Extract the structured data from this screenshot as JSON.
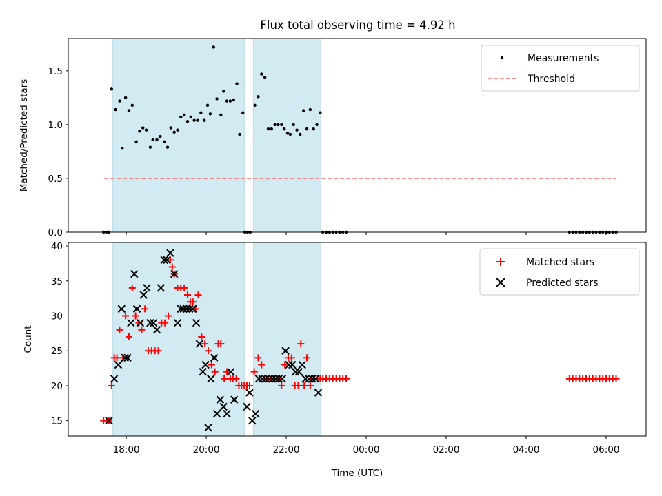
{
  "title": "Flux total observing time = 4.92 h",
  "xlabel": "Time (UTC)",
  "colors": {
    "shade": "#add8e6",
    "measurement": "#000000",
    "threshold": "#ff6b6b",
    "matched": "#ff0000",
    "predicted": "#000000"
  },
  "chart_data": [
    {
      "type": "scatter",
      "ylabel": "Matched/Predicted stars",
      "ylim": [
        0,
        1.8
      ],
      "yticks": [
        "0.0",
        "0.5",
        "1.0",
        "1.5"
      ],
      "ytick_values": [
        0.0,
        0.5,
        1.0,
        1.5
      ],
      "xticks": [],
      "legend": {
        "placement": "top-right",
        "entries": [
          "Measurements",
          "Threshold"
        ]
      },
      "grid": false,
      "shaded_spans": [
        [
          "17:40",
          "20:57"
        ],
        [
          "21:11",
          "22:52"
        ]
      ],
      "threshold": {
        "name": "Threshold",
        "y": 0.5,
        "x_range": [
          "17:27",
          "06:15"
        ]
      },
      "series": [
        {
          "name": "Measurements",
          "points": [
            [
              "17:26",
              0
            ],
            [
              "17:30",
              0
            ],
            [
              "17:34",
              0
            ],
            [
              "17:38",
              1.33
            ],
            [
              "17:44",
              1.14
            ],
            [
              "17:50",
              1.22
            ],
            [
              "17:54",
              0.78
            ],
            [
              "17:59",
              1.25
            ],
            [
              "18:04",
              1.13
            ],
            [
              "18:09",
              1.18
            ],
            [
              "18:15",
              0.84
            ],
            [
              "18:20",
              0.94
            ],
            [
              "18:25",
              0.97
            ],
            [
              "18:30",
              0.95
            ],
            [
              "18:36",
              0.79
            ],
            [
              "18:40",
              0.86
            ],
            [
              "18:46",
              0.86
            ],
            [
              "18:51",
              0.89
            ],
            [
              "18:57",
              0.84
            ],
            [
              "19:02",
              0.79
            ],
            [
              "19:07",
              0.97
            ],
            [
              "19:12",
              0.93
            ],
            [
              "19:17",
              0.95
            ],
            [
              "19:22",
              1.07
            ],
            [
              "19:27",
              1.09
            ],
            [
              "19:32",
              1.03
            ],
            [
              "19:37",
              1.07
            ],
            [
              "19:42",
              1.04
            ],
            [
              "19:47",
              1.04
            ],
            [
              "19:52",
              1.11
            ],
            [
              "19:57",
              1.04
            ],
            [
              "20:02",
              1.18
            ],
            [
              "20:06",
              1.1
            ],
            [
              "20:11",
              1.72
            ],
            [
              "20:16",
              1.24
            ],
            [
              "20:22",
              1.09
            ],
            [
              "20:26",
              1.31
            ],
            [
              "20:31",
              1.22
            ],
            [
              "20:36",
              1.22
            ],
            [
              "20:41",
              1.23
            ],
            [
              "20:46",
              1.38
            ],
            [
              "20:50",
              0.91
            ],
            [
              "20:55",
              1.11
            ],
            [
              "20:58",
              0
            ],
            [
              "21:02",
              0
            ],
            [
              "21:06",
              0
            ],
            [
              "21:13",
              1.18
            ],
            [
              "21:18",
              1.26
            ],
            [
              "21:23",
              1.47
            ],
            [
              "21:28",
              1.44
            ],
            [
              "21:33",
              0.96
            ],
            [
              "21:38",
              0.96
            ],
            [
              "21:43",
              1.0
            ],
            [
              "21:48",
              1.0
            ],
            [
              "21:53",
              1.0
            ],
            [
              "21:57",
              0.96
            ],
            [
              "22:02",
              0.92
            ],
            [
              "22:06",
              0.91
            ],
            [
              "22:11",
              1.0
            ],
            [
              "22:16",
              0.95
            ],
            [
              "22:21",
              0.91
            ],
            [
              "22:26",
              1.13
            ],
            [
              "22:31",
              0.96
            ],
            [
              "22:36",
              1.14
            ],
            [
              "22:41",
              0.96
            ],
            [
              "22:46",
              1.0
            ],
            [
              "22:51",
              1.11
            ],
            [
              "22:55",
              0
            ],
            [
              "23:00",
              0
            ],
            [
              "23:05",
              0
            ],
            [
              "23:10",
              0
            ],
            [
              "23:15",
              0
            ],
            [
              "23:20",
              0
            ],
            [
              "23:25",
              0
            ],
            [
              "23:30",
              0
            ],
            [
              "05:05",
              0
            ],
            [
              "05:10",
              0
            ],
            [
              "05:15",
              0
            ],
            [
              "05:20",
              0
            ],
            [
              "05:25",
              0
            ],
            [
              "05:30",
              0
            ],
            [
              "05:35",
              0
            ],
            [
              "05:40",
              0
            ],
            [
              "05:45",
              0
            ],
            [
              "05:50",
              0
            ],
            [
              "05:55",
              0
            ],
            [
              "06:00",
              0
            ],
            [
              "06:05",
              0
            ],
            [
              "06:10",
              0
            ],
            [
              "06:15",
              0
            ]
          ]
        }
      ]
    },
    {
      "type": "scatter",
      "ylabel": "Count",
      "ylim": [
        12.8,
        40.5
      ],
      "yticks": [
        "15",
        "20",
        "25",
        "30",
        "35",
        "40"
      ],
      "ytick_values": [
        15,
        20,
        25,
        30,
        35,
        40
      ],
      "xlim": [
        "16:33",
        "07:00"
      ],
      "xticks": [
        "18:00",
        "20:00",
        "22:00",
        "00:00",
        "02:00",
        "04:00",
        "06:00"
      ],
      "legend": {
        "placement": "top-right",
        "entries": [
          "Matched stars",
          "Predicted stars"
        ]
      },
      "grid": false,
      "shaded_spans": [
        [
          "17:40",
          "20:57"
        ],
        [
          "21:11",
          "22:52"
        ]
      ],
      "series": [
        {
          "name": "Matched stars",
          "points": [
            [
              "17:26",
              15
            ],
            [
              "17:30",
              15
            ],
            [
              "17:34",
              15
            ],
            [
              "17:38",
              20
            ],
            [
              "17:42",
              24
            ],
            [
              "17:46",
              24
            ],
            [
              "17:50",
              28
            ],
            [
              "17:55",
              24
            ],
            [
              "17:59",
              30
            ],
            [
              "18:04",
              27
            ],
            [
              "18:09",
              34
            ],
            [
              "18:14",
              30
            ],
            [
              "18:19",
              29
            ],
            [
              "18:23",
              28
            ],
            [
              "18:28",
              31
            ],
            [
              "18:33",
              25
            ],
            [
              "18:38",
              25
            ],
            [
              "18:43",
              25
            ],
            [
              "18:48",
              25
            ],
            [
              "18:53",
              29
            ],
            [
              "18:58",
              29
            ],
            [
              "19:03",
              30
            ],
            [
              "19:06",
              38
            ],
            [
              "19:09",
              37
            ],
            [
              "19:12",
              36
            ],
            [
              "19:17",
              34
            ],
            [
              "19:22",
              34
            ],
            [
              "19:27",
              34
            ],
            [
              "19:32",
              33
            ],
            [
              "19:36",
              32
            ],
            [
              "19:40",
              32
            ],
            [
              "19:44",
              31
            ],
            [
              "19:48",
              33
            ],
            [
              "19:53",
              27
            ],
            [
              "19:58",
              26
            ],
            [
              "20:03",
              25
            ],
            [
              "20:08",
              23
            ],
            [
              "20:13",
              22
            ],
            [
              "20:18",
              26
            ],
            [
              "20:22",
              26
            ],
            [
              "20:27",
              21
            ],
            [
              "20:31",
              22
            ],
            [
              "20:36",
              21
            ],
            [
              "20:40",
              21
            ],
            [
              "20:45",
              21
            ],
            [
              "20:49",
              20
            ],
            [
              "20:53",
              20
            ],
            [
              "20:57",
              20
            ],
            [
              "21:01",
              20
            ],
            [
              "21:05",
              20
            ],
            [
              "21:12",
              22
            ],
            [
              "21:18",
              24
            ],
            [
              "21:23",
              23
            ],
            [
              "21:28",
              21
            ],
            [
              "21:33",
              21
            ],
            [
              "21:38",
              21
            ],
            [
              "21:43",
              21
            ],
            [
              "21:48",
              21
            ],
            [
              "21:53",
              20
            ],
            [
              "21:58",
              23
            ],
            [
              "22:03",
              24
            ],
            [
              "22:08",
              24
            ],
            [
              "22:13",
              20
            ],
            [
              "22:18",
              20
            ],
            [
              "22:22",
              26
            ],
            [
              "22:27",
              20
            ],
            [
              "22:31",
              24
            ],
            [
              "22:36",
              20
            ],
            [
              "22:41",
              21
            ],
            [
              "22:46",
              21
            ],
            [
              "22:51",
              21
            ],
            [
              "22:55",
              21
            ],
            [
              "23:00",
              21
            ],
            [
              "23:05",
              21
            ],
            [
              "23:10",
              21
            ],
            [
              "23:15",
              21
            ],
            [
              "23:20",
              21
            ],
            [
              "23:25",
              21
            ],
            [
              "23:30",
              21
            ],
            [
              "05:05",
              21
            ],
            [
              "05:10",
              21
            ],
            [
              "05:15",
              21
            ],
            [
              "05:20",
              21
            ],
            [
              "05:25",
              21
            ],
            [
              "05:30",
              21
            ],
            [
              "05:35",
              21
            ],
            [
              "05:40",
              21
            ],
            [
              "05:45",
              21
            ],
            [
              "05:50",
              21
            ],
            [
              "05:55",
              21
            ],
            [
              "06:00",
              21
            ],
            [
              "06:05",
              21
            ],
            [
              "06:10",
              21
            ],
            [
              "06:15",
              21
            ]
          ]
        },
        {
          "name": "Predicted stars",
          "points": [
            [
              "17:34",
              15
            ],
            [
              "17:42",
              21
            ],
            [
              "17:48",
              23
            ],
            [
              "17:53",
              31
            ],
            [
              "17:58",
              24
            ],
            [
              "18:02",
              24
            ],
            [
              "18:07",
              29
            ],
            [
              "18:12",
              36
            ],
            [
              "18:16",
              31
            ],
            [
              "18:21",
              29
            ],
            [
              "18:26",
              33
            ],
            [
              "18:31",
              34
            ],
            [
              "18:36",
              29
            ],
            [
              "18:41",
              29
            ],
            [
              "18:46",
              28
            ],
            [
              "18:52",
              34
            ],
            [
              "18:57",
              38
            ],
            [
              "19:01",
              38
            ],
            [
              "19:06",
              39
            ],
            [
              "19:12",
              36
            ],
            [
              "19:17",
              29
            ],
            [
              "19:22",
              31
            ],
            [
              "19:26",
              31
            ],
            [
              "19:30",
              31
            ],
            [
              "19:35",
              31
            ],
            [
              "19:40",
              31
            ],
            [
              "19:45",
              29
            ],
            [
              "19:50",
              26
            ],
            [
              "19:55",
              22
            ],
            [
              "19:59",
              23
            ],
            [
              "20:03",
              14
            ],
            [
              "20:07",
              21
            ],
            [
              "20:12",
              24
            ],
            [
              "20:16",
              16
            ],
            [
              "20:21",
              18
            ],
            [
              "20:26",
              17
            ],
            [
              "20:31",
              16
            ],
            [
              "20:37",
              22
            ],
            [
              "20:42",
              18
            ],
            [
              "21:01",
              17
            ],
            [
              "21:05",
              19
            ],
            [
              "21:09",
              15
            ],
            [
              "21:14",
              16
            ],
            [
              "21:19",
              21
            ],
            [
              "21:24",
              21
            ],
            [
              "21:29",
              21
            ],
            [
              "21:34",
              21
            ],
            [
              "21:39",
              21
            ],
            [
              "21:44",
              21
            ],
            [
              "21:49",
              21
            ],
            [
              "21:54",
              21
            ],
            [
              "21:59",
              25
            ],
            [
              "22:04",
              23
            ],
            [
              "22:09",
              23
            ],
            [
              "22:14",
              22
            ],
            [
              "22:19",
              22
            ],
            [
              "22:24",
              23
            ],
            [
              "22:29",
              21
            ],
            [
              "22:34",
              21
            ],
            [
              "22:39",
              21
            ],
            [
              "22:44",
              21
            ],
            [
              "22:48",
              19
            ]
          ]
        }
      ]
    }
  ]
}
